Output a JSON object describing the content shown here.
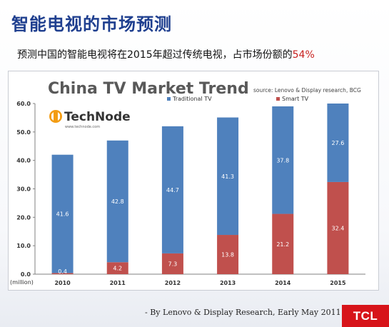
{
  "slide": {
    "title": "智能电视的市场预测",
    "subtitle_main": "预测中国的智能电视将在2015年超过传统电视，占市场份额的",
    "subtitle_accent": "54%",
    "source_note": "- By Lenovo & Display Research,  Early  May 2011",
    "brand": "TCL"
  },
  "chart_data": {
    "type": "bar",
    "stacked": true,
    "title": "China TV Market Trend",
    "source": "source: Lenovo & Display research, BCG",
    "watermark_logo": "TechNode",
    "watermark_url": "www.technode.com",
    "ylabel": "(million)",
    "ylim": [
      0,
      60
    ],
    "yticks": [
      0,
      10,
      20,
      30,
      40,
      50,
      60
    ],
    "ytick_labels": [
      "0.0",
      "10.0",
      "20.0",
      "30.0",
      "40.0",
      "50.0",
      "60.0"
    ],
    "grid": false,
    "legend_position": "top-right",
    "categories": [
      "2010",
      "2011",
      "2012",
      "2013",
      "2014",
      "2015"
    ],
    "series": [
      {
        "name": "Smart TV",
        "values": [
          0.4,
          4.2,
          7.3,
          13.8,
          21.2,
          32.4
        ],
        "labels": [
          "0.4",
          "4.2",
          "7.3",
          "13.8",
          "21.2",
          "32.4"
        ],
        "color": "#c0504d"
      },
      {
        "name": "Traditional TV",
        "values": [
          41.6,
          42.8,
          44.7,
          41.3,
          37.8,
          27.6
        ],
        "labels": [
          "41.6",
          "42.8",
          "44.7",
          "41.3",
          "37.8",
          "27.6"
        ],
        "color": "#4f81bd"
      }
    ]
  }
}
